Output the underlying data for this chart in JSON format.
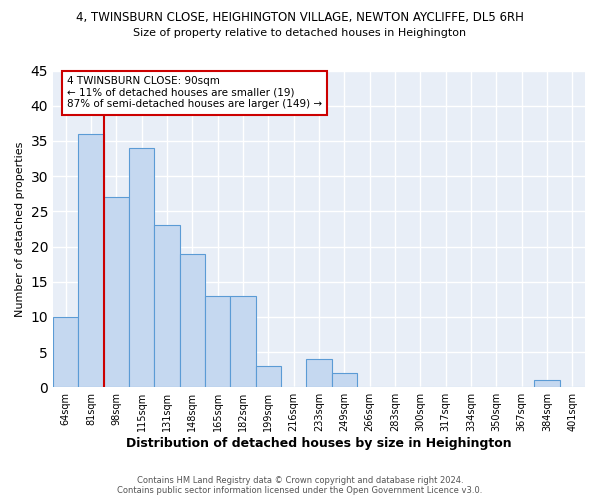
{
  "title_line1": "4, TWINSBURN CLOSE, HEIGHINGTON VILLAGE, NEWTON AYCLIFFE, DL5 6RH",
  "title_line2": "Size of property relative to detached houses in Heighington",
  "xlabel": "Distribution of detached houses by size in Heighington",
  "ylabel": "Number of detached properties",
  "categories": [
    "64sqm",
    "81sqm",
    "98sqm",
    "115sqm",
    "131sqm",
    "148sqm",
    "165sqm",
    "182sqm",
    "199sqm",
    "216sqm",
    "233sqm",
    "249sqm",
    "266sqm",
    "283sqm",
    "300sqm",
    "317sqm",
    "334sqm",
    "350sqm",
    "367sqm",
    "384sqm",
    "401sqm"
  ],
  "values": [
    10,
    36,
    27,
    34,
    23,
    19,
    13,
    13,
    3,
    0,
    4,
    2,
    0,
    0,
    0,
    0,
    0,
    0,
    0,
    1,
    0
  ],
  "bar_color": "#c5d8f0",
  "bar_edge_color": "#5b9bd5",
  "annotation_text": "4 TWINSBURN CLOSE: 90sqm\n← 11% of detached houses are smaller (19)\n87% of semi-detached houses are larger (149) →",
  "annotation_box_color": "#ffffff",
  "annotation_box_edge_color": "#cc0000",
  "vline_color": "#cc0000",
  "vline_x": 1.5,
  "ylim": [
    0,
    45
  ],
  "yticks": [
    0,
    5,
    10,
    15,
    20,
    25,
    30,
    35,
    40,
    45
  ],
  "footer": "Contains HM Land Registry data © Crown copyright and database right 2024.\nContains public sector information licensed under the Open Government Licence v3.0.",
  "background_color": "#e8eef7",
  "grid_color": "#ffffff"
}
